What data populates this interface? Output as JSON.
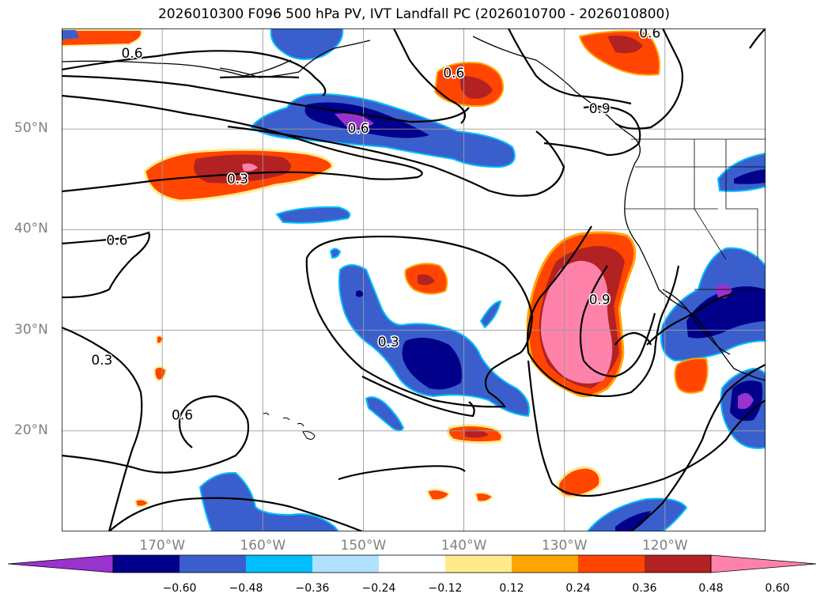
{
  "title": "2026010300 F096 500 hPa PV, IVT Landfall PC (2026010700 - 2026010800)",
  "map": {
    "lon_range": [
      -180,
      -110
    ],
    "lat_range": [
      10,
      60
    ],
    "lat_ticks": [
      {
        "lat": 50,
        "label": "50°N"
      },
      {
        "lat": 40,
        "label": "40°N"
      },
      {
        "lat": 30,
        "label": "30°N"
      },
      {
        "lat": 20,
        "label": "20°N"
      }
    ],
    "lon_ticks": [
      {
        "lon": -170,
        "label": "170°W"
      },
      {
        "lon": -160,
        "label": "160°W"
      },
      {
        "lon": -150,
        "label": "150°W"
      },
      {
        "lon": -140,
        "label": "140°W"
      },
      {
        "lon": -130,
        "label": "130°W"
      },
      {
        "lon": -120,
        "label": "120°W"
      }
    ],
    "grid": true,
    "contour_labels": [
      {
        "lon": -173,
        "lat": 57.5,
        "text": "0.6"
      },
      {
        "lon": -162.5,
        "lat": 45,
        "text": "0.3"
      },
      {
        "lon": -150.5,
        "lat": 50,
        "text": "0.6"
      },
      {
        "lon": -141,
        "lat": 55.5,
        "text": "0.6"
      },
      {
        "lon": -121.5,
        "lat": 59.5,
        "text": "0.6"
      },
      {
        "lon": -126.5,
        "lat": 52,
        "text": "0.9"
      },
      {
        "lon": -174.5,
        "lat": 38.9,
        "text": "0.6"
      },
      {
        "lon": -176,
        "lat": 27,
        "text": "0.3"
      },
      {
        "lon": -168,
        "lat": 21.5,
        "text": "0.6"
      },
      {
        "lon": -147.5,
        "lat": 28.8,
        "text": "0.3"
      },
      {
        "lon": -126.5,
        "lat": 33,
        "text": "0.9"
      }
    ]
  },
  "colorbar": {
    "colors": [
      "#9a32cd",
      "#00008b",
      "#3a5fcd",
      "#00bfff",
      "#b0e2ff",
      "#ffffff",
      "#ffeb8b",
      "#ffa500",
      "#ff4500",
      "#b22222",
      "#ff82ab"
    ],
    "tick_labels": [
      "−0.60",
      "−0.48",
      "−0.36",
      "−0.24",
      "−0.12",
      "0.12",
      "0.24",
      "0.36",
      "0.48",
      "0.60"
    ]
  }
}
